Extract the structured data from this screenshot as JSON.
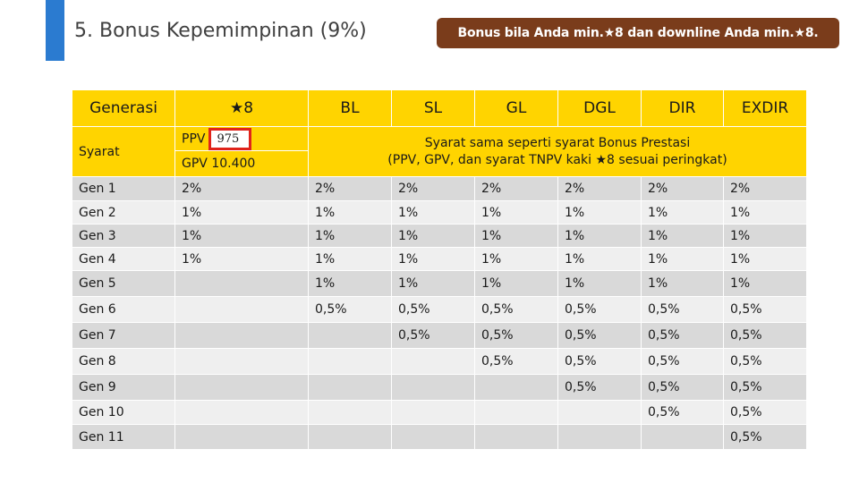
{
  "title": "5. Bonus Kepemimpinan (9%)",
  "badge": "Bonus bila Anda min.★8 dan downline Anda min.★8.",
  "headers": [
    "Generasi",
    "★8",
    "BL",
    "SL",
    "GL",
    "DGL",
    "DIR",
    "EXDIR"
  ],
  "syarat": {
    "label": "Syarat",
    "ppv_label": "PPV",
    "ppv_value": "975",
    "gpv_label": "GPV 10.400",
    "note_line1": "Syarat sama seperti syarat Bonus Prestasi",
    "note_line2": "(PPV, GPV, dan syarat TNPV kaki ★8 sesuai peringkat)"
  },
  "rows": [
    {
      "gen": "Gen 1",
      "cells": [
        "2%",
        "2%",
        "2%",
        "2%",
        "2%",
        "2%",
        "2%"
      ]
    },
    {
      "gen": "Gen 2",
      "cells": [
        "1%",
        "1%",
        "1%",
        "1%",
        "1%",
        "1%",
        "1%"
      ]
    },
    {
      "gen": "Gen 3",
      "cells": [
        "1%",
        "1%",
        "1%",
        "1%",
        "1%",
        "1%",
        "1%"
      ]
    },
    {
      "gen": "Gen 4",
      "cells": [
        "1%",
        "1%",
        "1%",
        "1%",
        "1%",
        "1%",
        "1%"
      ]
    },
    {
      "gen": "Gen 5",
      "cells": [
        "",
        "1%",
        "1%",
        "1%",
        "1%",
        "1%",
        "1%"
      ]
    },
    {
      "gen": "Gen  6",
      "cells": [
        "",
        "0,5%",
        "0,5%",
        "0,5%",
        "0,5%",
        "0,5%",
        "0,5%"
      ]
    },
    {
      "gen": "Gen 7",
      "cells": [
        "",
        "",
        "0,5%",
        "0,5%",
        "0,5%",
        "0,5%",
        "0,5%"
      ]
    },
    {
      "gen": "Gen 8",
      "cells": [
        "",
        "",
        "",
        "0,5%",
        "0,5%",
        "0,5%",
        "0,5%"
      ]
    },
    {
      "gen": "Gen 9",
      "cells": [
        "",
        "",
        "",
        "",
        "0,5%",
        "0,5%",
        "0,5%"
      ]
    },
    {
      "gen": "Gen 10",
      "cells": [
        "",
        "",
        "",
        "",
        "",
        "0,5%",
        "0,5%"
      ]
    },
    {
      "gen": "Gen 11",
      "cells": [
        "",
        "",
        "",
        "",
        "",
        "",
        "0,5%"
      ]
    }
  ],
  "colors": {
    "accent": "#2b7bd0",
    "badge": "#7a3c1b",
    "header": "#ffd400",
    "highlight": "#e0241b"
  }
}
